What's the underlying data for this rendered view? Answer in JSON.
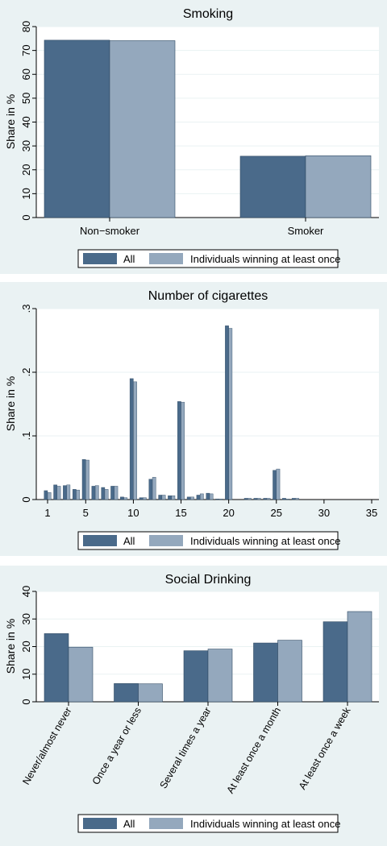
{
  "colors": {
    "all": "#4a6a8a",
    "winners": "#94a8bd",
    "panel_bg": "#eaf2f3",
    "plot_bg": "#ffffff",
    "grid": "#eaf2f3"
  },
  "chart_data": [
    {
      "type": "bar",
      "title": "Smoking",
      "ylabel": "Share in %",
      "xlabel": "",
      "ylim": [
        0,
        80
      ],
      "yticks": [
        "0",
        "10",
        "20",
        "30",
        "40",
        "50",
        "60",
        "70",
        "80"
      ],
      "categories": [
        "Non−smoker",
        "Smoker"
      ],
      "series": [
        {
          "name": "All",
          "values": [
            74.3,
            25.7
          ]
        },
        {
          "name": "Individuals winning at least once",
          "values": [
            74.1,
            25.9
          ]
        }
      ],
      "legend": "bottom"
    },
    {
      "type": "bar",
      "title": "Number of cigarettes",
      "ylabel": "Share in %",
      "xlabel": "",
      "ylim": [
        0,
        0.3
      ],
      "xlim": [
        0.5,
        35
      ],
      "yticks": [
        ".3",
        ".2",
        ".1",
        "0"
      ],
      "xticks": [
        "1",
        "5",
        "10",
        "15",
        "20",
        "25",
        "30",
        "35"
      ],
      "x": [
        1,
        2,
        3,
        4,
        5,
        6,
        7,
        8,
        9,
        10,
        11,
        12,
        13,
        14,
        15,
        16,
        17,
        18,
        19,
        20,
        21,
        22,
        23,
        24,
        25,
        26,
        27
      ],
      "series": [
        {
          "name": "All",
          "values": [
            0.014,
            0.023,
            0.022,
            0.016,
            0.063,
            0.021,
            0.019,
            0.021,
            0.004,
            0.19,
            0.003,
            0.032,
            0.007,
            0.006,
            0.154,
            0.004,
            0.007,
            0.01,
            0.001,
            0.273,
            0.0,
            0.002,
            0.002,
            0.002,
            0.046,
            0.002,
            0.002
          ]
        },
        {
          "name": "Individuals winning at least once",
          "values": [
            0.011,
            0.021,
            0.023,
            0.015,
            0.062,
            0.022,
            0.016,
            0.021,
            0.003,
            0.185,
            0.003,
            0.035,
            0.007,
            0.006,
            0.153,
            0.004,
            0.009,
            0.009,
            0.001,
            0.269,
            0.0,
            0.002,
            0.002,
            0.002,
            0.048,
            0.001,
            0.002
          ]
        }
      ],
      "legend": "bottom"
    },
    {
      "type": "bar",
      "title": "Social Drinking",
      "ylabel": "Share in %",
      "xlabel": "",
      "ylim": [
        0,
        40
      ],
      "yticks": [
        "0",
        "10",
        "20",
        "30",
        "40"
      ],
      "categories": [
        "Never/almost never",
        "Once a year or less",
        "Several times a year",
        "At least once a month",
        "At least once a week"
      ],
      "series": [
        {
          "name": "All",
          "values": [
            24.7,
            6.6,
            18.5,
            21.3,
            29.0
          ]
        },
        {
          "name": "Individuals winning at least once",
          "values": [
            19.8,
            6.5,
            19.1,
            22.3,
            32.7
          ]
        }
      ],
      "legend": "bottom"
    }
  ]
}
